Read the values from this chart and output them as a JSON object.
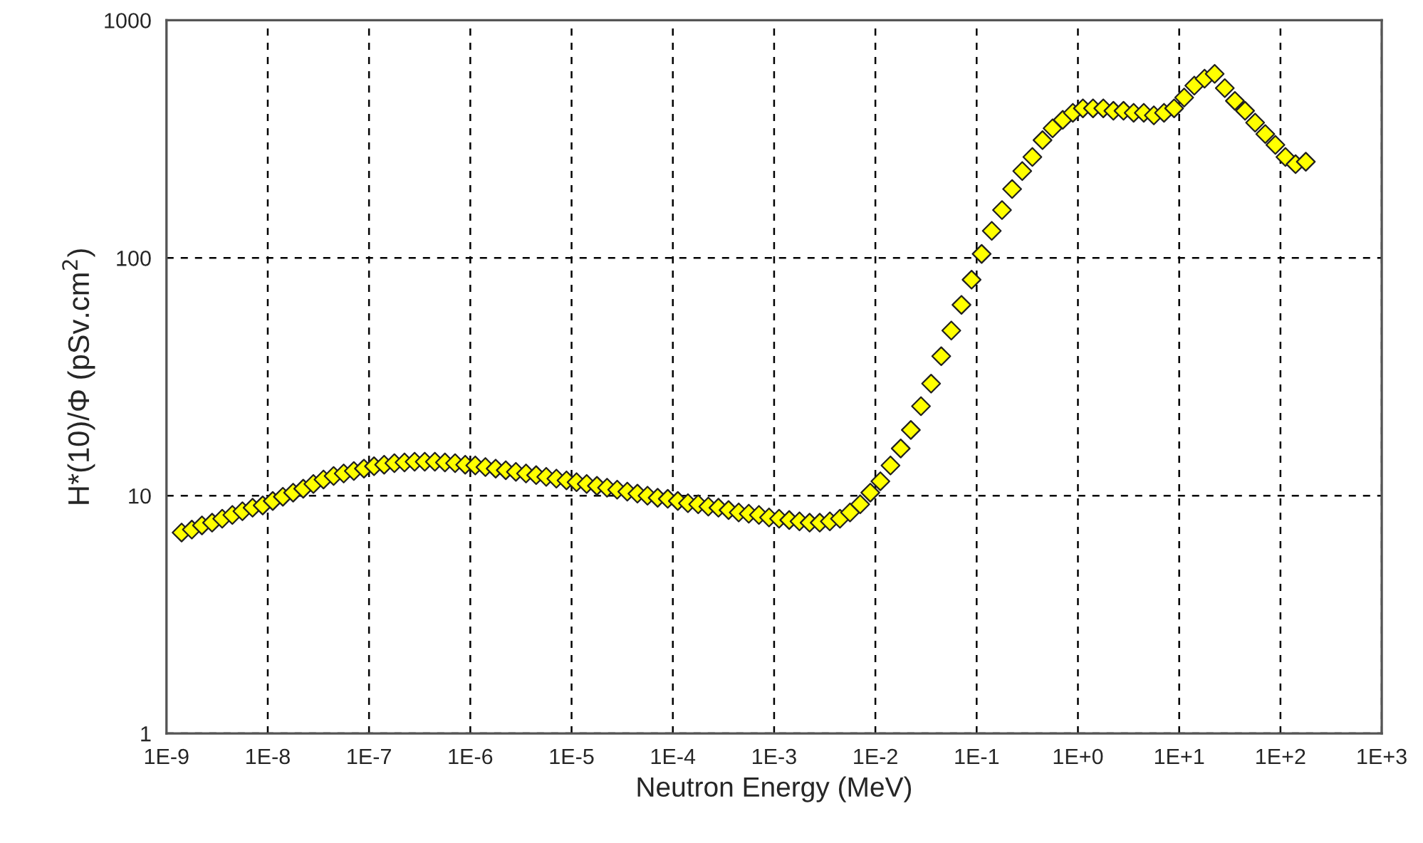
{
  "chart_data": {
    "type": "scatter",
    "xlabel": "Neutron Energy (MeV)",
    "ylabel": "H*(10)/Φ (pSv.cm$^{2}$)",
    "log": "xy",
    "xlim": [
      1e-09,
      1000
    ],
    "ylim": [
      1,
      1000
    ],
    "xticks": [
      {
        "value": 1e-09,
        "label": "1E-9"
      },
      {
        "value": 1e-08,
        "label": "1E-8"
      },
      {
        "value": 1e-07,
        "label": "1E-7"
      },
      {
        "value": 1e-06,
        "label": "1E-6"
      },
      {
        "value": 1e-05,
        "label": "1E-5"
      },
      {
        "value": 0.0001,
        "label": "1E-4"
      },
      {
        "value": 0.001,
        "label": "1E-3"
      },
      {
        "value": 0.01,
        "label": "1E-2"
      },
      {
        "value": 0.1,
        "label": "1E-1"
      },
      {
        "value": 1,
        "label": "1E+0"
      },
      {
        "value": 10,
        "label": "1E+1"
      },
      {
        "value": 100,
        "label": "1E+2"
      },
      {
        "value": 1000,
        "label": "1E+3"
      }
    ],
    "yticks": [
      1,
      10,
      100,
      1000
    ],
    "grid": true,
    "marker": "diamond",
    "series": [
      {
        "color": "#ffff00",
        "x": [
          1.41e-09,
          1.78e-09,
          2.24e-09,
          2.82e-09,
          3.55e-09,
          4.47e-09,
          5.62e-09,
          7.08e-09,
          8.91e-09,
          1.12e-08,
          1.41e-08,
          1.78e-08,
          2.24e-08,
          2.82e-08,
          3.55e-08,
          4.47e-08,
          5.62e-08,
          7.08e-08,
          8.91e-08,
          1.12e-07,
          1.41e-07,
          1.78e-07,
          2.24e-07,
          2.82e-07,
          3.55e-07,
          4.47e-07,
          5.62e-07,
          7.08e-07,
          8.91e-07,
          1.12e-06,
          1.41e-06,
          1.78e-06,
          2.24e-06,
          2.82e-06,
          3.55e-06,
          4.47e-06,
          5.62e-06,
          7.08e-06,
          8.91e-06,
          1.12e-05,
          1.41e-05,
          1.78e-05,
          2.24e-05,
          2.82e-05,
          3.55e-05,
          4.47e-05,
          5.62e-05,
          7.08e-05,
          8.91e-05,
          0.000112,
          0.000141,
          0.000178,
          0.000224,
          0.000282,
          0.000355,
          0.000447,
          0.000562,
          0.000708,
          0.000891,
          0.00112,
          0.00141,
          0.00178,
          0.00224,
          0.00282,
          0.00355,
          0.00447,
          0.00562,
          0.00708,
          0.00891,
          0.0112,
          0.0141,
          0.0178,
          0.0224,
          0.0282,
          0.0355,
          0.0447,
          0.0562,
          0.0708,
          0.0891,
          0.112,
          0.141,
          0.178,
          0.224,
          0.282,
          0.355,
          0.447,
          0.562,
          0.708,
          0.891,
          1.12,
          1.41,
          1.78,
          2.24,
          2.82,
          3.55,
          4.47,
          5.62,
          7.08,
          8.91,
          11.2,
          14.1,
          17.8,
          22.4,
          28.2,
          35.5,
          44.7,
          56.2,
          70.8,
          89.1,
          112,
          141,
          178
        ],
        "values": [
          7.0,
          7.2,
          7.5,
          7.7,
          8.0,
          8.3,
          8.6,
          8.9,
          9.1,
          9.5,
          9.9,
          10.3,
          10.7,
          11.2,
          11.7,
          12.1,
          12.4,
          12.7,
          13.0,
          13.3,
          13.5,
          13.7,
          13.8,
          13.9,
          13.9,
          13.9,
          13.8,
          13.7,
          13.5,
          13.4,
          13.2,
          13.0,
          12.8,
          12.6,
          12.4,
          12.2,
          12.0,
          11.8,
          11.6,
          11.4,
          11.2,
          11.0,
          10.8,
          10.6,
          10.4,
          10.2,
          10.0,
          9.8,
          9.7,
          9.5,
          9.3,
          9.2,
          9.0,
          8.9,
          8.7,
          8.5,
          8.4,
          8.3,
          8.1,
          8.0,
          7.9,
          7.8,
          7.7,
          7.7,
          7.8,
          8.0,
          8.5,
          9.2,
          10.3,
          11.5,
          13.4,
          15.8,
          18.9,
          23.8,
          29.6,
          38.6,
          49.5,
          63.5,
          81,
          104,
          130,
          159,
          195,
          232,
          266,
          313,
          351,
          381,
          408,
          426,
          426,
          426,
          416,
          416,
          408,
          408,
          398,
          408,
          426,
          473,
          531,
          568,
          595,
          518,
          458,
          416,
          371,
          332,
          299,
          266,
          248,
          254
        ]
      }
    ]
  }
}
